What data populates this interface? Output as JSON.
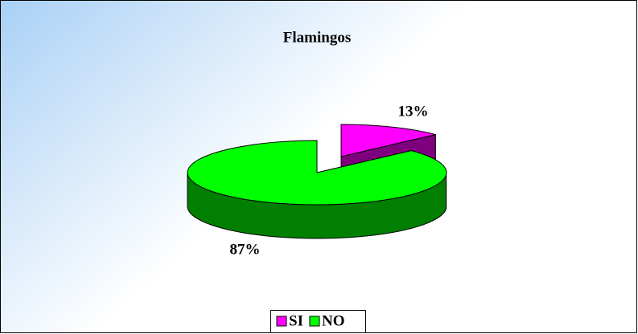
{
  "chart_data": {
    "type": "pie3d",
    "title": "Flamingos",
    "categories": [
      "SI",
      "NO"
    ],
    "values": [
      13,
      87
    ],
    "value_labels": [
      "13%",
      "87%"
    ],
    "colors": [
      "#ff00ff",
      "#00ff00"
    ],
    "legend": "bottom"
  }
}
